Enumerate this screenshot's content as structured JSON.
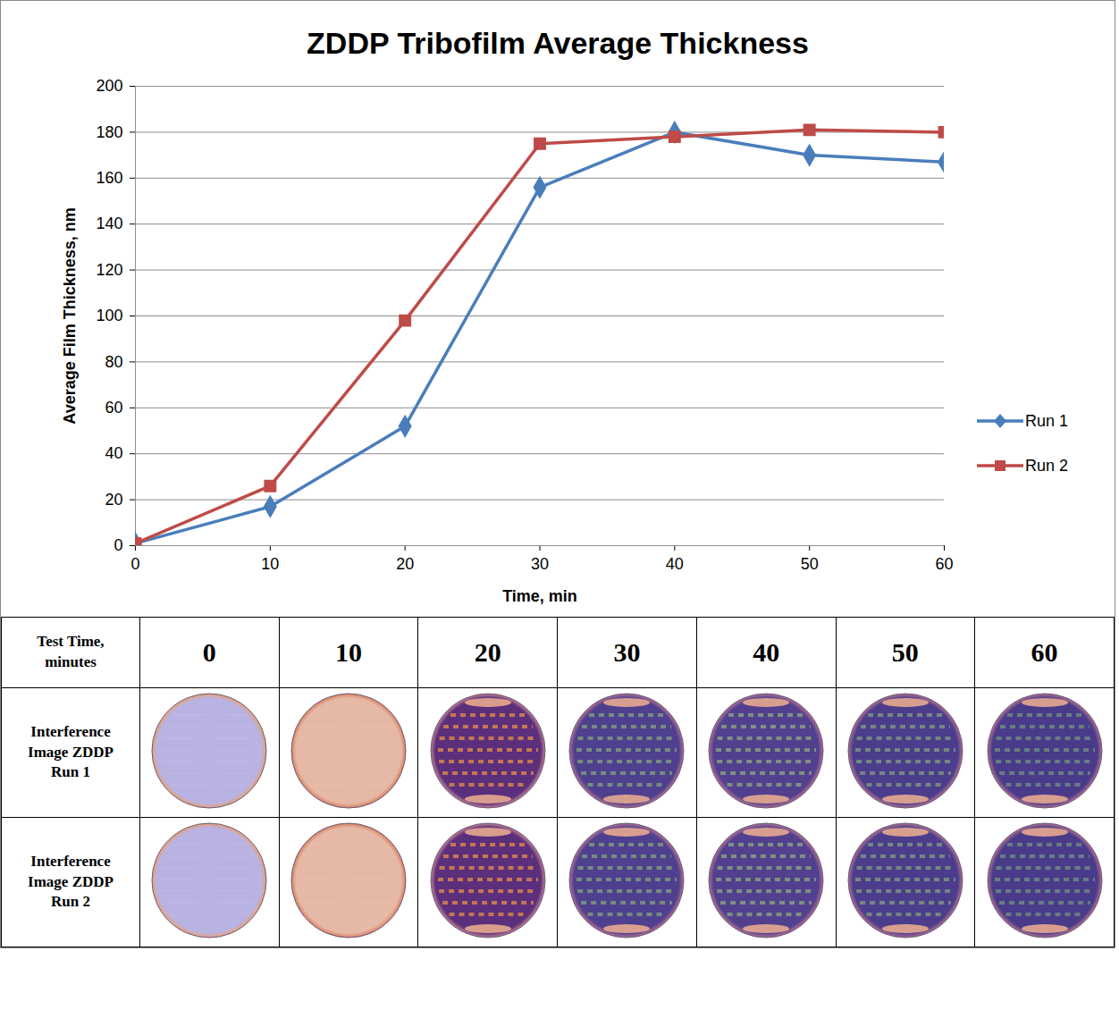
{
  "chart_data": {
    "type": "line",
    "title": "ZDDP Tribofilm Average Thickness",
    "x_label": "Time, min",
    "y_label": "Average Film Thickness, nm",
    "x": [
      0,
      10,
      20,
      30,
      40,
      50,
      60
    ],
    "series": [
      {
        "name": "Run 1",
        "color": "#4a7ebb",
        "marker": "diamond",
        "values": [
          1,
          17,
          52,
          156,
          180,
          170,
          167
        ]
      },
      {
        "name": "Run 2",
        "color": "#be4b48",
        "marker": "square",
        "values": [
          1,
          26,
          98,
          175,
          178,
          181,
          180
        ]
      }
    ],
    "xlim": [
      0,
      60
    ],
    "xticks": [
      0,
      10,
      20,
      30,
      40,
      50,
      60
    ],
    "ylim": [
      0,
      200
    ],
    "yticks": [
      0,
      20,
      40,
      60,
      80,
      100,
      120,
      140,
      160,
      180,
      200
    ],
    "grid": true,
    "legend": "right"
  },
  "table": {
    "header": [
      "Test Time, minutes",
      "0",
      "10",
      "20",
      "30",
      "40",
      "50",
      "60"
    ],
    "rows": [
      [
        "Interference Image ZDDP Run 1"
      ],
      [
        "Interference Image ZDDP Run 2"
      ]
    ]
  }
}
